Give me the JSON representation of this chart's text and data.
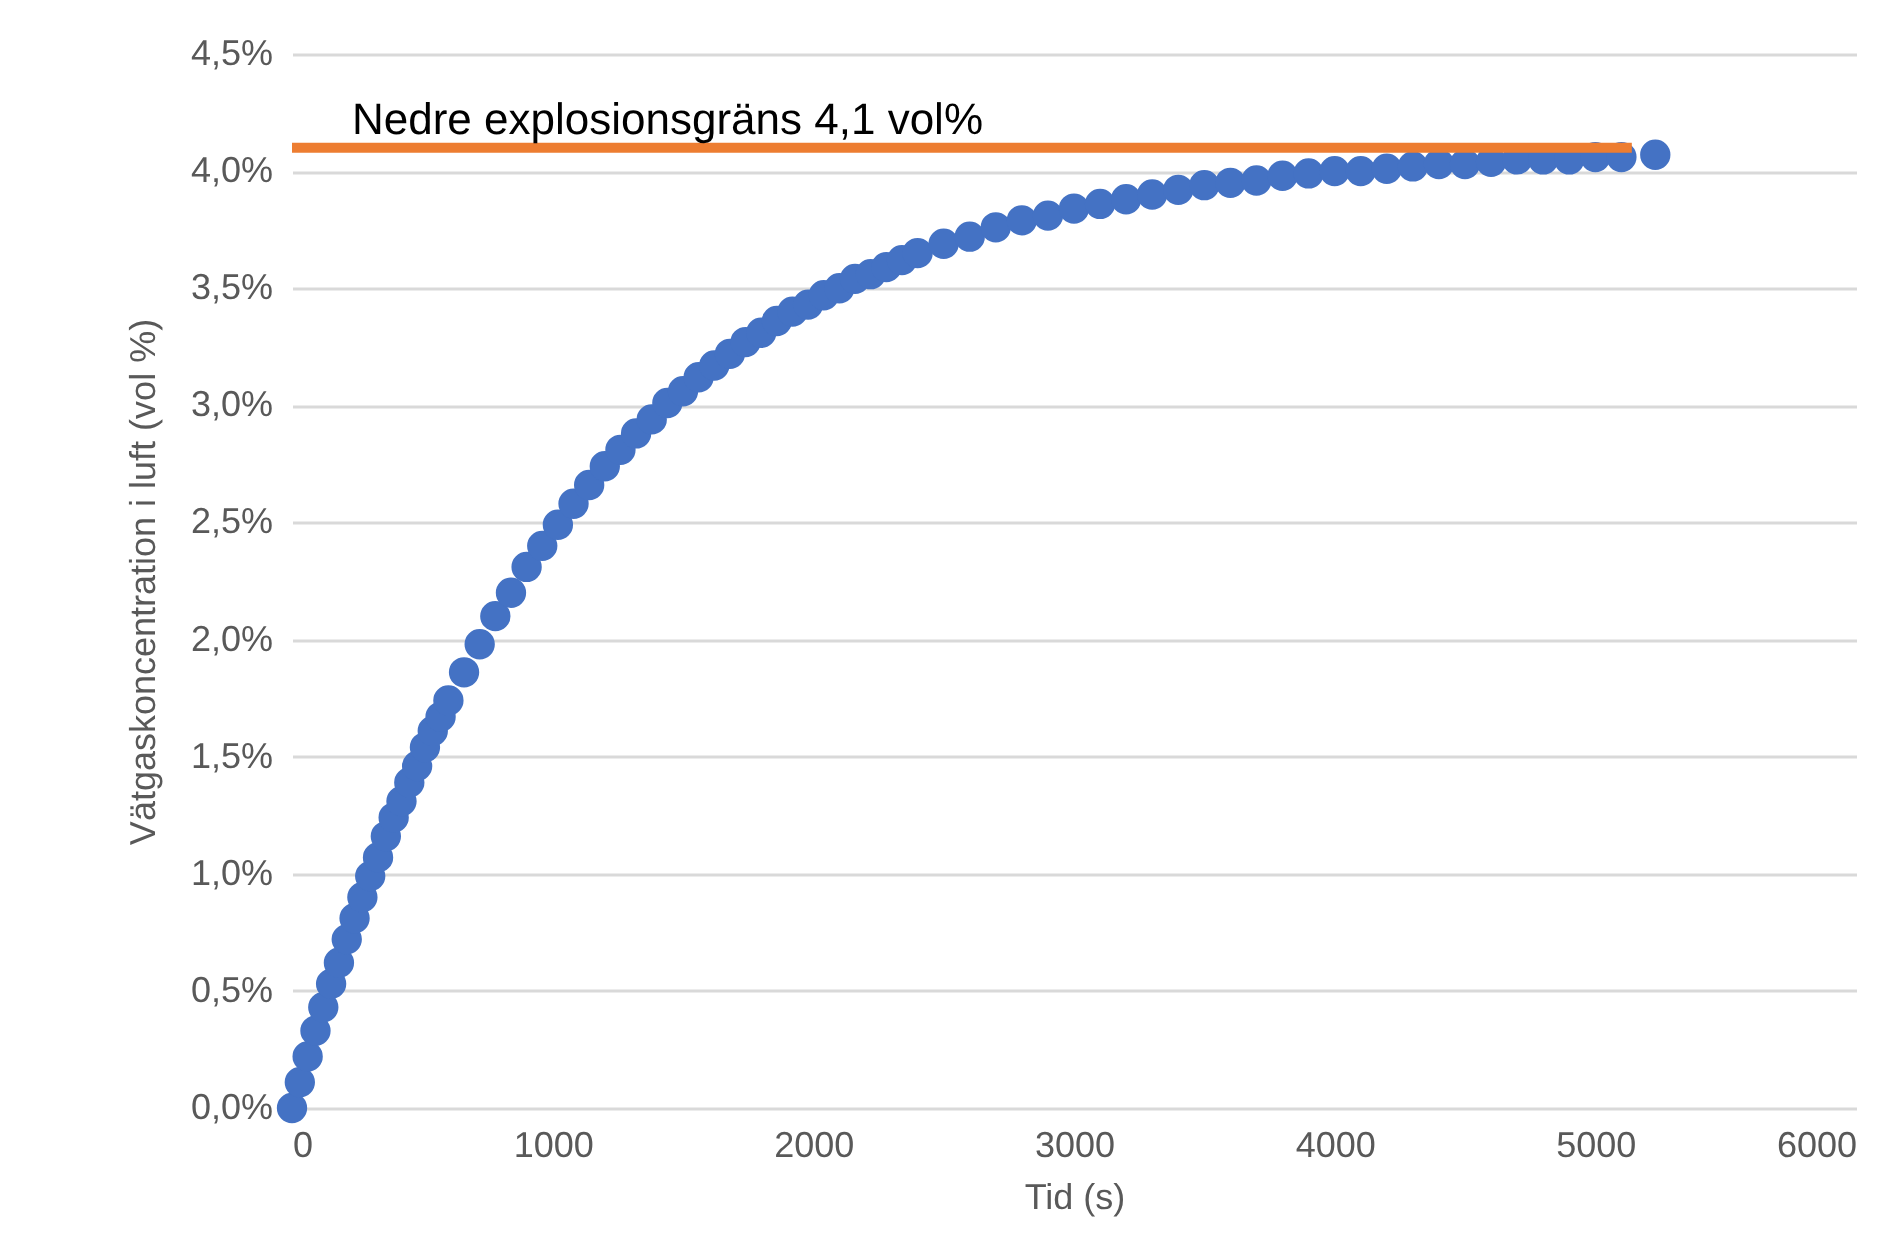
{
  "chart_data": {
    "type": "scatter",
    "xlabel": "Tid (s)",
    "ylabel": "Vätgaskoncentration i luft (vol %)",
    "xlim": [
      0,
      6000
    ],
    "xticks": [
      0,
      1000,
      2000,
      3000,
      4000,
      5000,
      6000
    ],
    "ylim": [
      0,
      4.5
    ],
    "yticks": [
      {
        "value": 0,
        "label": "0,0%"
      },
      {
        "value": 0.5,
        "label": "0,5%"
      },
      {
        "value": 1,
        "label": "1,0%"
      },
      {
        "value": 1.5,
        "label": "1,5%"
      },
      {
        "value": 2,
        "label": "2,0%"
      },
      {
        "value": 2.5,
        "label": "2,5%"
      },
      {
        "value": 3,
        "label": "3,0%"
      },
      {
        "value": 3.5,
        "label": "3,5%"
      },
      {
        "value": 4,
        "label": "4,0%"
      },
      {
        "value": 4.5,
        "label": "4,5%"
      }
    ],
    "grid": "y",
    "series": [
      {
        "color": "#4472c4",
        "marker": "circle",
        "x": [
          0,
          30,
          60,
          90,
          120,
          150,
          180,
          210,
          240,
          270,
          300,
          330,
          360,
          390,
          420,
          450,
          480,
          510,
          540,
          570,
          600,
          660,
          720,
          780,
          840,
          900,
          960,
          1020,
          1080,
          1140,
          1200,
          1260,
          1320,
          1380,
          1440,
          1500,
          1560,
          1620,
          1680,
          1740,
          1800,
          1860,
          1920,
          1980,
          2040,
          2100,
          2160,
          2220,
          2280,
          2340,
          2400,
          2500,
          2600,
          2700,
          2800,
          2900,
          3000,
          3100,
          3200,
          3300,
          3400,
          3500,
          3600,
          3700,
          3800,
          3900,
          4000,
          4100,
          4200,
          4300,
          4400,
          4500,
          4600,
          4700,
          4800,
          4900,
          5000,
          5100,
          5230
        ],
        "values": [
          0,
          0.11,
          0.22,
          0.33,
          0.43,
          0.53,
          0.62,
          0.72,
          0.81,
          0.9,
          0.99,
          1.07,
          1.16,
          1.24,
          1.31,
          1.39,
          1.46,
          1.54,
          1.61,
          1.67,
          1.74,
          1.86,
          1.98,
          2.1,
          2.2,
          2.31,
          2.4,
          2.49,
          2.58,
          2.66,
          2.74,
          2.81,
          2.88,
          2.94,
          3.01,
          3.06,
          3.12,
          3.17,
          3.22,
          3.27,
          3.31,
          3.36,
          3.4,
          3.43,
          3.47,
          3.5,
          3.54,
          3.56,
          3.59,
          3.62,
          3.65,
          3.69,
          3.72,
          3.76,
          3.79,
          3.81,
          3.84,
          3.86,
          3.88,
          3.9,
          3.92,
          3.94,
          3.95,
          3.96,
          3.98,
          3.99,
          4.0,
          4.0,
          4.01,
          4.02,
          4.03,
          4.03,
          4.04,
          4.05,
          4.05,
          4.05,
          4.06,
          4.06,
          4.07
        ]
      },
      {
        "type": "line",
        "name": "Nedre explosionsgräns 4,1 vol%",
        "color": "#ed7d31",
        "marker": "none",
        "x": [
          0,
          5140
        ],
        "values": [
          4.1,
          4.1
        ]
      }
    ]
  }
}
